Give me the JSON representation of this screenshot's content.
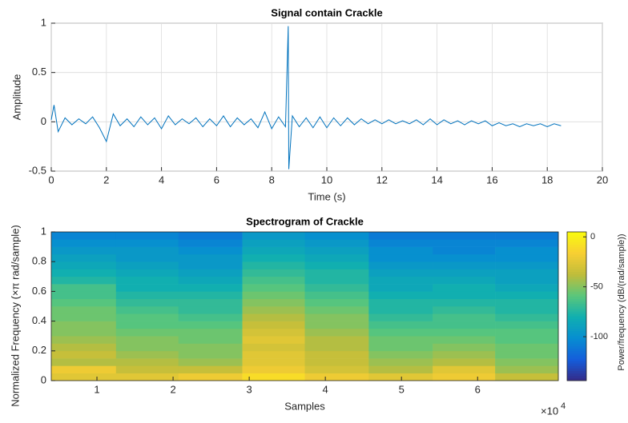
{
  "chart_data": [
    {
      "type": "line",
      "title": "Signal contain Crackle",
      "xlabel": "Time (s)",
      "ylabel": "Amplitude",
      "color": "#0072bd",
      "grid": true,
      "x": [
        0,
        0.1,
        0.25,
        0.5,
        0.75,
        1,
        1.25,
        1.5,
        1.75,
        2,
        2.25,
        2.5,
        2.75,
        3,
        3.25,
        3.5,
        3.75,
        4,
        4.25,
        4.5,
        4.75,
        5,
        5.25,
        5.5,
        5.75,
        6,
        6.25,
        6.5,
        6.75,
        7,
        7.25,
        7.5,
        7.75,
        8,
        8.25,
        8.5,
        8.6,
        8.62,
        8.75,
        9,
        9.25,
        9.5,
        9.75,
        10,
        10.25,
        10.5,
        10.75,
        11,
        11.25,
        11.5,
        11.75,
        12,
        12.25,
        12.5,
        12.75,
        13,
        13.25,
        13.5,
        13.75,
        14,
        14.25,
        14.5,
        14.75,
        15,
        15.25,
        15.5,
        15.75,
        16,
        16.25,
        16.5,
        16.75,
        17,
        17.25,
        17.5,
        17.75,
        18,
        18.25,
        18.5
      ],
      "values": [
        0.02,
        0.17,
        -0.1,
        0.04,
        -0.03,
        0.03,
        -0.02,
        0.05,
        -0.06,
        -0.2,
        0.08,
        -0.04,
        0.03,
        -0.05,
        0.05,
        -0.03,
        0.04,
        -0.07,
        0.06,
        -0.03,
        0.03,
        -0.02,
        0.04,
        -0.05,
        0.03,
        -0.04,
        0.06,
        -0.05,
        0.04,
        -0.03,
        0.03,
        -0.06,
        0.1,
        -0.07,
        0.05,
        -0.05,
        0.97,
        -0.48,
        0.06,
        -0.05,
        0.04,
        -0.06,
        0.05,
        -0.06,
        0.04,
        -0.04,
        0.04,
        -0.03,
        0.03,
        -0.02,
        0.02,
        -0.02,
        0.02,
        -0.02,
        0.01,
        -0.02,
        0.02,
        -0.03,
        0.03,
        -0.03,
        0.02,
        -0.02,
        0.01,
        -0.03,
        0.01,
        -0.02,
        0.01,
        -0.04,
        -0.01,
        -0.04,
        -0.02,
        -0.05,
        -0.02,
        -0.04,
        -0.02,
        -0.05,
        -0.02,
        -0.04
      ],
      "xlim": [
        0,
        20
      ],
      "xticks": [
        0,
        2,
        4,
        6,
        8,
        10,
        12,
        14,
        16,
        18,
        20
      ],
      "ylim": [
        -0.5,
        1
      ],
      "yticks": [
        -0.5,
        0,
        0.5,
        1
      ]
    },
    {
      "type": "heatmap",
      "title": "Spectrogram of Crackle",
      "xlabel": "Samples",
      "ylabel": "Normalized Frequency  (×π rad/sample)",
      "x_multiplier": "×10",
      "x_multiplier_exponent": "4",
      "colorbar_label": "Power/frequency (dB/(rad/sample))",
      "colormap": "parula",
      "xbins": [
        0.4,
        1.25,
        2.07,
        2.91,
        3.73,
        4.57,
        5.41,
        6.23,
        7.06
      ],
      "ybins": [
        0,
        0.05,
        0.1,
        0.15,
        0.2,
        0.25,
        0.3,
        0.35,
        0.4,
        0.45,
        0.5,
        0.55,
        0.6,
        0.65,
        0.7,
        0.75,
        0.8,
        0.85,
        0.9,
        0.95,
        1
      ],
      "values": [
        [
          -25,
          -20,
          -40,
          -35,
          -40,
          -45,
          -50,
          -50,
          -55,
          -55,
          -60,
          -65,
          -65,
          -75,
          -80,
          -85,
          -90,
          -95,
          -100,
          -105
        ],
        [
          -25,
          -35,
          -40,
          -45,
          -50,
          -50,
          -55,
          -60,
          -60,
          -65,
          -70,
          -75,
          -80,
          -80,
          -85,
          -90,
          -95,
          -95,
          -100,
          -105
        ],
        [
          -20,
          -35,
          -45,
          -50,
          -50,
          -55,
          -55,
          -60,
          -65,
          -70,
          -70,
          -75,
          -80,
          -85,
          -90,
          -95,
          -95,
          -100,
          -105,
          -110
        ],
        [
          -10,
          -20,
          -25,
          -25,
          -30,
          -25,
          -30,
          -35,
          -40,
          -45,
          -50,
          -55,
          -60,
          -65,
          -70,
          -75,
          -80,
          -85,
          -90,
          -95
        ],
        [
          -20,
          -30,
          -35,
          -35,
          -40,
          -40,
          -45,
          -50,
          -50,
          -55,
          -60,
          -65,
          -70,
          -75,
          -75,
          -80,
          -85,
          -90,
          -95,
          -100
        ],
        [
          -25,
          -40,
          -45,
          -50,
          -55,
          -55,
          -60,
          -65,
          -70,
          -75,
          -75,
          -80,
          -85,
          -85,
          -90,
          -95,
          -100,
          -100,
          -105,
          -110
        ],
        [
          -20,
          -25,
          -40,
          -45,
          -50,
          -55,
          -60,
          -65,
          -65,
          -70,
          -75,
          -80,
          -80,
          -85,
          -90,
          -95,
          -100,
          -105,
          -105,
          -110
        ],
        [
          -35,
          -45,
          -50,
          -55,
          -55,
          -60,
          -60,
          -65,
          -70,
          -75,
          -75,
          -80,
          -85,
          -90,
          -90,
          -95,
          -100,
          -100,
          -105,
          -110
        ]
      ],
      "xlim": [
        0.4,
        7.06
      ],
      "xticks": [
        1,
        2,
        3,
        4,
        5,
        6
      ],
      "ylim": [
        0,
        1
      ],
      "yticks": [
        0,
        0.2,
        0.4,
        0.6,
        0.8,
        1
      ],
      "clim": [
        -144,
        5
      ],
      "cticks": [
        0,
        -50,
        -100
      ]
    }
  ]
}
